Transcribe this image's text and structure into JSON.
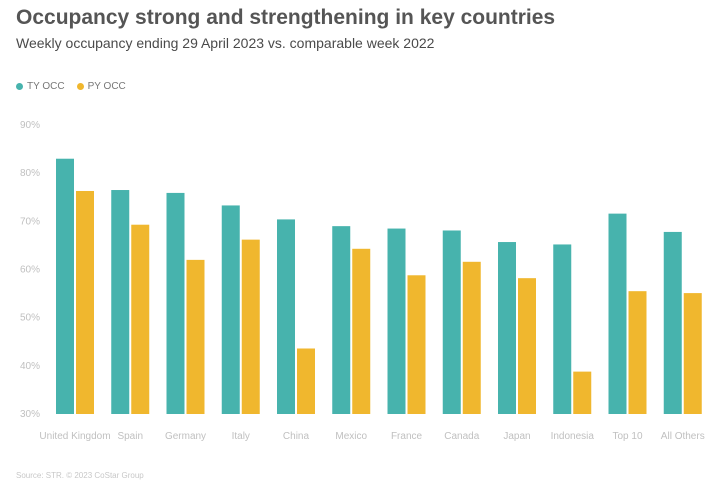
{
  "title": "Occupancy strong and strengthening in key countries",
  "subtitle": "Weekly occupancy ending 29 April 2023 vs. comparable week 2022",
  "source": "Source: STR. © 2023 CoStar Group",
  "colors": {
    "ty": "#47b3ad",
    "py": "#f0b72e",
    "grid": "#e5e5e5",
    "tick": "#c0c0c0"
  },
  "chart_data": {
    "type": "bar",
    "categories": [
      "United Kingdom",
      "Spain",
      "Germany",
      "Italy",
      "China",
      "Mexico",
      "France",
      "Canada",
      "Japan",
      "Indonesia",
      "Top 10",
      "All Others"
    ],
    "series": [
      {
        "name": "TY OCC",
        "values": [
          83.0,
          76.5,
          75.9,
          73.3,
          70.4,
          69.0,
          68.5,
          68.1,
          65.7,
          65.2,
          71.6,
          67.8
        ]
      },
      {
        "name": "PY OCC",
        "values": [
          76.3,
          69.3,
          62.0,
          66.2,
          43.6,
          64.3,
          58.8,
          61.6,
          58.2,
          38.8,
          55.5,
          55.1
        ]
      }
    ],
    "yticks": [
      "30%",
      "40%",
      "50%",
      "60%",
      "70%",
      "80%",
      "90%"
    ],
    "ylim": [
      30,
      90
    ],
    "legend": "top-left",
    "grid": false
  }
}
